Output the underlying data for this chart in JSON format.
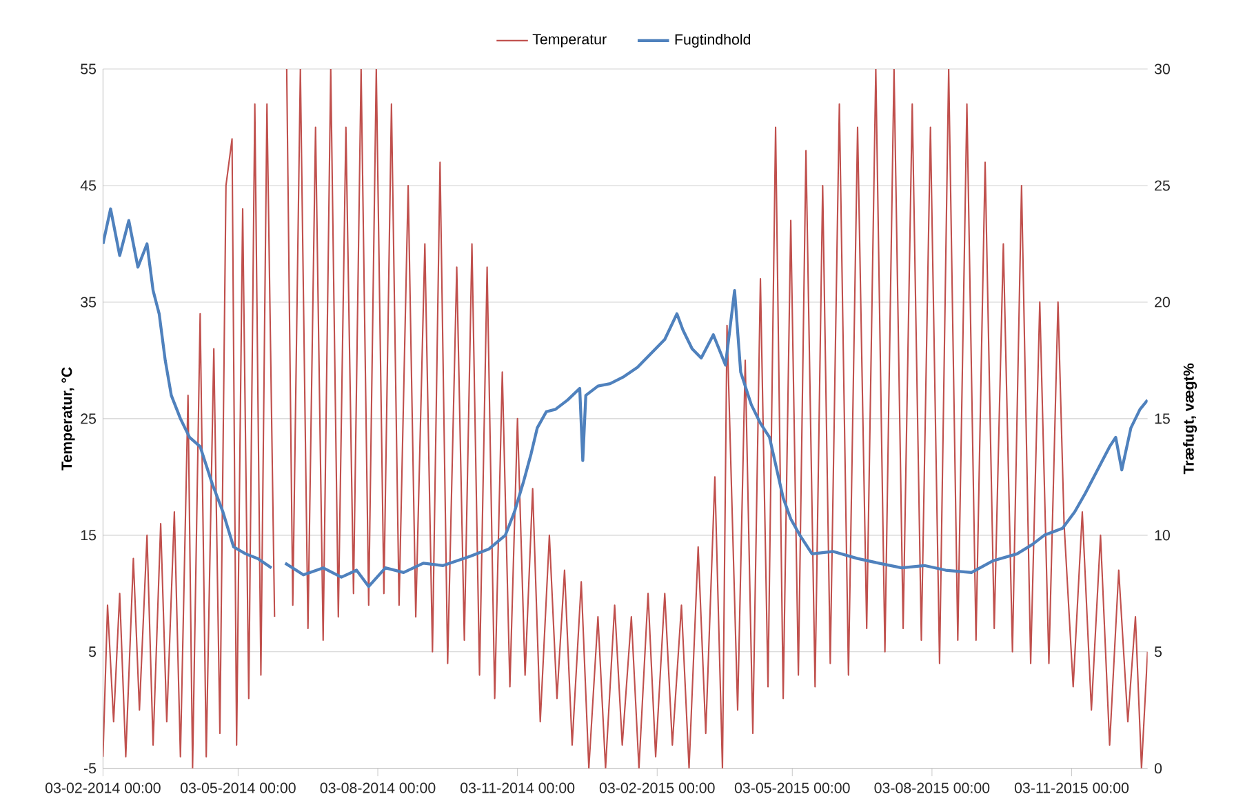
{
  "chart_data": {
    "type": "line",
    "xlabel": null,
    "ylabel": "Temperatur, °C",
    "y2label": "Træfugt, vægt%",
    "legend": "top",
    "grid": "y",
    "xlim": [
      "2014-02-03",
      "2015-12-23"
    ],
    "xticks": [
      {
        "value": "2014-02-03",
        "label": "03-02-2014 00:00"
      },
      {
        "value": "2014-05-03",
        "label": "03-05-2014 00:00"
      },
      {
        "value": "2014-08-03",
        "label": "03-08-2014 00:00"
      },
      {
        "value": "2014-11-03",
        "label": "03-11-2014 00:00"
      },
      {
        "value": "2015-02-03",
        "label": "03-02-2015 00:00"
      },
      {
        "value": "2015-05-03",
        "label": "03-05-2015 00:00"
      },
      {
        "value": "2015-08-03",
        "label": "03-08-2015 00:00"
      },
      {
        "value": "2015-11-03",
        "label": "03-11-2015 00:00"
      }
    ],
    "ylim": [
      -5,
      55
    ],
    "yticks": [
      -5,
      5,
      15,
      25,
      35,
      45,
      55
    ],
    "y2lim": [
      0,
      30
    ],
    "y2ticks": [
      0,
      5,
      10,
      15,
      20,
      25,
      30
    ],
    "series": [
      {
        "name": "Temperatur",
        "color": "#c0504d",
        "x": [
          "2014-02-03",
          "2014-02-06",
          "2014-02-10",
          "2014-02-14",
          "2014-02-18",
          "2014-02-23",
          "2014-02-27",
          "2014-03-04",
          "2014-03-08",
          "2014-03-13",
          "2014-03-17",
          "2014-03-22",
          "2014-03-26",
          "2014-03-31",
          "2014-04-03",
          "2014-04-08",
          "2014-04-12",
          "2014-04-17",
          "2014-04-21",
          "2014-04-25",
          "2014-04-29",
          "2014-05-02",
          "2014-05-06",
          "2014-05-10",
          "2014-05-14",
          "2014-05-18",
          "2014-05-22",
          "2014-05-27",
          "2014-05-30",
          "2014-06-04",
          "2014-06-08",
          "2014-06-13",
          "2014-06-18",
          "2014-06-23",
          "2014-06-28",
          "2014-07-03",
          "2014-07-08",
          "2014-07-13",
          "2014-07-18",
          "2014-07-23",
          "2014-07-28",
          "2014-08-02",
          "2014-08-07",
          "2014-08-12",
          "2014-08-17",
          "2014-08-23",
          "2014-08-28",
          "2014-09-03",
          "2014-09-08",
          "2014-09-13",
          "2014-09-18",
          "2014-09-24",
          "2014-09-29",
          "2014-10-04",
          "2014-10-09",
          "2014-10-14",
          "2014-10-19",
          "2014-10-24",
          "2014-10-29",
          "2014-11-03",
          "2014-11-08",
          "2014-11-13",
          "2014-11-18",
          "2014-11-24",
          "2014-11-29",
          "2014-12-04",
          "2014-12-09",
          "2014-12-15",
          "2014-12-20",
          "2014-12-26",
          "2014-12-31",
          "2015-01-06",
          "2015-01-11",
          "2015-01-17",
          "2015-01-22",
          "2015-01-28",
          "2015-02-02",
          "2015-02-08",
          "2015-02-13",
          "2015-02-19",
          "2015-02-24",
          "2015-03-02",
          "2015-03-07",
          "2015-03-13",
          "2015-03-18",
          "2015-03-21",
          "2015-03-28",
          "2015-04-02",
          "2015-04-07",
          "2015-04-12",
          "2015-04-17",
          "2015-04-22",
          "2015-04-27",
          "2015-05-02",
          "2015-05-07",
          "2015-05-12",
          "2015-05-18",
          "2015-05-23",
          "2015-05-28",
          "2015-06-03",
          "2015-06-09",
          "2015-06-15",
          "2015-06-21",
          "2015-06-27",
          "2015-07-03",
          "2015-07-09",
          "2015-07-15",
          "2015-07-21",
          "2015-07-27",
          "2015-08-02",
          "2015-08-08",
          "2015-08-14",
          "2015-08-20",
          "2015-08-26",
          "2015-09-01",
          "2015-09-07",
          "2015-09-13",
          "2015-09-19",
          "2015-09-25",
          "2015-10-01",
          "2015-10-07",
          "2015-10-13",
          "2015-10-19",
          "2015-10-25",
          "2015-10-29",
          "2015-11-04",
          "2015-11-10",
          "2015-11-16",
          "2015-11-22",
          "2015-11-28",
          "2015-12-04",
          "2015-12-10",
          "2015-12-15",
          "2015-12-19",
          "2015-12-23"
        ],
        "values": [
          -4,
          9,
          -1,
          10,
          -4,
          13,
          0,
          15,
          -3,
          16,
          -1,
          17,
          -4,
          27,
          -5,
          34,
          -4,
          31,
          -2,
          45,
          49,
          -3,
          43,
          1,
          52,
          3,
          52,
          8,
          null,
          55,
          9,
          55,
          7,
          50,
          6,
          55,
          8,
          50,
          10,
          55,
          9,
          55,
          10,
          52,
          9,
          45,
          8,
          40,
          5,
          47,
          4,
          38,
          6,
          40,
          3,
          38,
          1,
          29,
          2,
          25,
          3,
          19,
          -1,
          15,
          1,
          12,
          -3,
          11,
          -5,
          8,
          -5,
          9,
          -3,
          8,
          -5,
          10,
          -4,
          10,
          -3,
          9,
          -5,
          14,
          -2,
          20,
          -5,
          33,
          0,
          30,
          -2,
          37,
          2,
          50,
          1,
          42,
          3,
          48,
          2,
          45,
          4,
          52,
          3,
          50,
          7,
          55,
          5,
          55,
          7,
          52,
          6,
          50,
          4,
          55,
          6,
          52,
          6,
          47,
          7,
          40,
          5,
          45,
          4,
          35,
          4,
          35,
          16,
          2,
          17,
          0,
          15,
          -3,
          12,
          -1,
          8,
          -5,
          5
        ]
      },
      {
        "name": "Fugtindhold",
        "color": "#4f81bd",
        "axis": "y2",
        "x": [
          "2014-02-03",
          "2014-02-08",
          "2014-02-14",
          "2014-02-20",
          "2014-02-26",
          "2014-03-04",
          "2014-03-08",
          "2014-03-12",
          "2014-03-16",
          "2014-03-20",
          "2014-03-26",
          "2014-04-01",
          "2014-04-08",
          "2014-04-16",
          "2014-04-23",
          "2014-04-30",
          "2014-05-08",
          "2014-05-16",
          "2014-05-25",
          "2014-05-30",
          "2014-06-03",
          "2014-06-15",
          "2014-06-28",
          "2014-07-10",
          "2014-07-20",
          "2014-07-28",
          "2014-08-08",
          "2014-08-20",
          "2014-09-02",
          "2014-09-15",
          "2014-10-03",
          "2014-10-15",
          "2014-10-26",
          "2014-11-01",
          "2014-11-07",
          "2014-11-12",
          "2014-11-16",
          "2014-11-22",
          "2014-11-28",
          "2014-12-06",
          "2014-12-14",
          "2014-12-16",
          "2014-12-18",
          "2014-12-26",
          "2015-01-03",
          "2015-01-12",
          "2015-01-21",
          "2015-01-30",
          "2015-02-08",
          "2015-02-16",
          "2015-02-20",
          "2015-02-26",
          "2015-03-04",
          "2015-03-12",
          "2015-03-20",
          "2015-03-26",
          "2015-03-30",
          "2015-04-06",
          "2015-04-12",
          "2015-04-18",
          "2015-04-27",
          "2015-05-02",
          "2015-05-08",
          "2015-05-16",
          "2015-05-30",
          "2015-06-15",
          "2015-06-29",
          "2015-07-14",
          "2015-07-29",
          "2015-08-12",
          "2015-08-29",
          "2015-09-12",
          "2015-09-28",
          "2015-10-08",
          "2015-10-16",
          "2015-10-28",
          "2015-11-05",
          "2015-11-12",
          "2015-11-20",
          "2015-11-28",
          "2015-12-02",
          "2015-12-06",
          "2015-12-12",
          "2015-12-18",
          "2015-12-23"
        ],
        "values": [
          22.5,
          24,
          22,
          23.5,
          21.5,
          22.5,
          20.5,
          19.5,
          17.5,
          16,
          15,
          14.2,
          13.8,
          12.2,
          11,
          9.5,
          9.2,
          9,
          8.6,
          null,
          8.8,
          8.3,
          8.6,
          8.2,
          8.5,
          7.8,
          8.6,
          8.4,
          8.8,
          8.7,
          9.1,
          9.4,
          10,
          11,
          12.3,
          13.5,
          14.6,
          15.3,
          15.4,
          15.8,
          16.3,
          13.2,
          16,
          16.4,
          16.5,
          16.8,
          17.2,
          17.8,
          18.4,
          19.5,
          18.8,
          18,
          17.6,
          18.6,
          17.3,
          20.5,
          17,
          15.6,
          14.8,
          14.2,
          11.6,
          10.7,
          10,
          9.2,
          9.3,
          9,
          8.8,
          8.6,
          8.7,
          8.5,
          8.4,
          8.9,
          9.2,
          9.6,
          10,
          10.3,
          11,
          11.8,
          12.8,
          13.8,
          14.2,
          12.8,
          14.6,
          15.4,
          15.8
        ]
      }
    ]
  }
}
